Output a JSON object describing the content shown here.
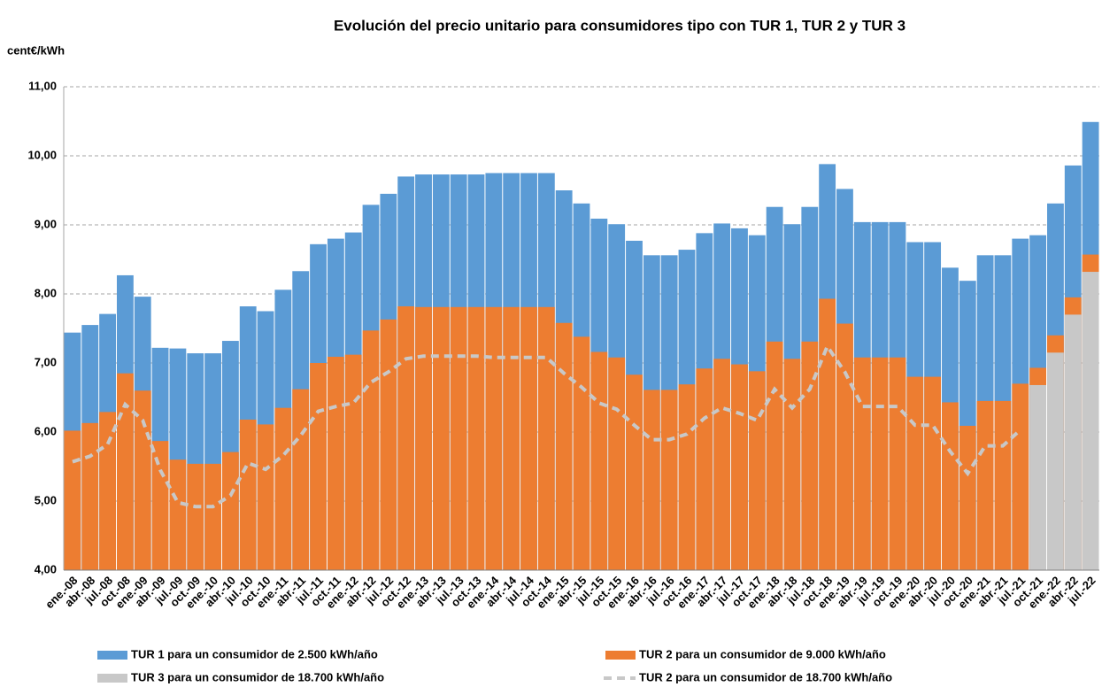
{
  "chart_data": {
    "type": "bar",
    "title": "Evolución del precio unitario para consumidores tipo con TUR 1, TUR 2 y TUR 3",
    "y_label": "cent€/kWh",
    "categories": [
      "ene.-08",
      "abr.-08",
      "jul.-08",
      "oct.-08",
      "ene.-09",
      "abr.-09",
      "jul.-09",
      "oct.-09",
      "ene.-10",
      "abr.-10",
      "jul.-10",
      "oct.-10",
      "ene.-11",
      "abr.-11",
      "jul.-11",
      "oct.-11",
      "ene.-12",
      "abr.-12",
      "jul.-12",
      "oct.-12",
      "ene.-13",
      "abr.-13",
      "jul.-13",
      "oct.-13",
      "ene.-14",
      "abr.-14",
      "jul.-14",
      "oct.-14",
      "ene.-15",
      "abr.-15",
      "jul.-15",
      "oct.-15",
      "ene.-16",
      "abr.-16",
      "jul.-16",
      "oct.-16",
      "ene.-17",
      "abr.-17",
      "jul.-17",
      "oct.-17",
      "ene.-18",
      "abr.-18",
      "jul.-18",
      "oct.-18",
      "ene.-19",
      "abr.-19",
      "jul.-19",
      "oct.-19",
      "ene.-20",
      "abr.-20",
      "jul.-20",
      "oct.-20",
      "ene.-21",
      "abr.-21",
      "jul.-21",
      "oct.-21",
      "ene.-22",
      "abr.-22",
      "jul.-22"
    ],
    "series": [
      {
        "name": "TUR 1 para un consumidor de 2.500 kWh/año",
        "color": "#5b9bd5",
        "kind": "bar",
        "values": [
          7.44,
          7.55,
          7.71,
          8.27,
          7.96,
          7.22,
          7.21,
          7.14,
          7.14,
          7.32,
          7.82,
          7.75,
          8.06,
          8.33,
          8.72,
          8.8,
          8.89,
          9.29,
          9.45,
          9.7,
          9.73,
          9.73,
          9.73,
          9.73,
          9.75,
          9.75,
          9.75,
          9.75,
          9.5,
          9.31,
          9.09,
          9.01,
          8.77,
          8.56,
          8.56,
          8.64,
          8.88,
          9.02,
          8.95,
          8.85,
          9.26,
          9.01,
          9.26,
          9.88,
          9.52,
          9.04,
          9.04,
          9.04,
          8.75,
          8.75,
          8.38,
          8.19,
          8.56,
          8.56,
          8.8,
          8.85,
          9.31,
          9.86,
          10.49
        ]
      },
      {
        "name": "TUR 2 para un consumidor de 9.000 kWh/año",
        "color": "#ed7d31",
        "kind": "bar",
        "values": [
          6.02,
          6.13,
          6.29,
          6.85,
          6.6,
          5.87,
          5.6,
          5.54,
          5.54,
          5.71,
          6.18,
          6.11,
          6.35,
          6.62,
          7.0,
          7.09,
          7.12,
          7.47,
          7.63,
          7.82,
          7.81,
          7.81,
          7.81,
          7.81,
          7.81,
          7.81,
          7.81,
          7.81,
          7.58,
          7.38,
          7.16,
          7.08,
          6.83,
          6.61,
          6.61,
          6.69,
          6.92,
          7.06,
          6.98,
          6.88,
          7.31,
          7.06,
          7.31,
          7.93,
          7.57,
          7.08,
          7.08,
          7.08,
          6.8,
          6.8,
          6.43,
          6.09,
          6.45,
          6.45,
          6.7,
          6.93,
          7.4,
          7.95,
          8.57
        ]
      },
      {
        "name": "TUR 3 para un consumidor de 18.700 kWh/año",
        "color": "#c8c8c8",
        "kind": "bar",
        "values": [
          null,
          null,
          null,
          null,
          null,
          null,
          null,
          null,
          null,
          null,
          null,
          null,
          null,
          null,
          null,
          null,
          null,
          null,
          null,
          null,
          null,
          null,
          null,
          null,
          null,
          null,
          null,
          null,
          null,
          null,
          null,
          null,
          null,
          null,
          null,
          null,
          null,
          null,
          null,
          null,
          null,
          null,
          null,
          null,
          null,
          null,
          null,
          null,
          null,
          null,
          null,
          null,
          null,
          null,
          null,
          6.68,
          7.15,
          7.7,
          8.32
        ]
      },
      {
        "name": "TUR 2 para un consumidor de 18.700 kWh/año",
        "color": "#c8c8c8",
        "kind": "line",
        "dashed": true,
        "values": [
          5.57,
          5.65,
          5.82,
          6.4,
          6.17,
          5.45,
          4.98,
          4.92,
          4.92,
          5.08,
          5.55,
          5.46,
          5.66,
          5.95,
          6.3,
          6.37,
          6.42,
          6.72,
          6.87,
          7.06,
          7.1,
          7.1,
          7.1,
          7.1,
          7.08,
          7.08,
          7.08,
          7.08,
          6.85,
          6.65,
          6.42,
          6.33,
          6.1,
          5.89,
          5.89,
          5.97,
          6.2,
          6.35,
          6.27,
          6.17,
          6.62,
          6.35,
          6.62,
          7.24,
          6.87,
          6.37,
          6.37,
          6.37,
          6.1,
          6.1,
          5.72,
          5.4,
          5.8,
          5.8,
          6.03,
          null,
          null,
          null,
          null
        ]
      }
    ],
    "ylim": [
      4,
      11
    ],
    "yticks": [
      {
        "value": 4,
        "label": "4,00"
      },
      {
        "value": 5,
        "label": "5,00"
      },
      {
        "value": 6,
        "label": "6,00"
      },
      {
        "value": 7,
        "label": "7,00"
      },
      {
        "value": 8,
        "label": "8,00"
      },
      {
        "value": 9,
        "label": "9,00"
      },
      {
        "value": 10,
        "label": "10,00"
      },
      {
        "value": 11,
        "label": "11,00"
      }
    ],
    "grid": true,
    "legend": "bottom"
  }
}
